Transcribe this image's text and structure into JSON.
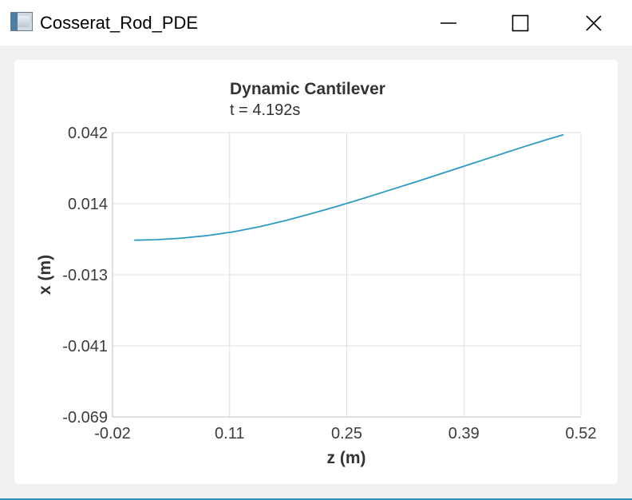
{
  "window": {
    "title": "Cosserat_Rod_PDE",
    "minimize_icon": "minimize-icon",
    "maximize_icon": "maximize-icon",
    "close_icon": "close-icon"
  },
  "colors": {
    "series": "#2b9bc4",
    "grid": "#e0e0e0",
    "accent": "#2e8fb7"
  },
  "chart_data": {
    "type": "line",
    "title": "Dynamic Cantilever",
    "subtitle": "t = 4.192s",
    "xlabel": "z (m)",
    "ylabel": "x (m)",
    "xlim": [
      -0.02,
      0.52
    ],
    "ylim": [
      -0.069,
      0.042
    ],
    "xticks": [
      "-0.02",
      "0.11",
      "0.25",
      "0.39",
      "0.52"
    ],
    "yticks": [
      "0.042",
      "0.014",
      "-0.013",
      "-0.041",
      "-0.069"
    ],
    "grid": true,
    "series": [
      {
        "x": [
          0.005,
          0.03,
          0.06,
          0.09,
          0.12,
          0.15,
          0.18,
          0.21,
          0.24,
          0.27,
          0.3,
          0.33,
          0.36,
          0.39,
          0.42,
          0.45,
          0.48,
          0.5
        ],
        "y": [
          0.0,
          0.0002,
          0.0008,
          0.0018,
          0.0033,
          0.0053,
          0.0077,
          0.0104,
          0.0133,
          0.0164,
          0.0196,
          0.0228,
          0.0261,
          0.0294,
          0.0327,
          0.036,
          0.0392,
          0.0412
        ]
      }
    ]
  }
}
